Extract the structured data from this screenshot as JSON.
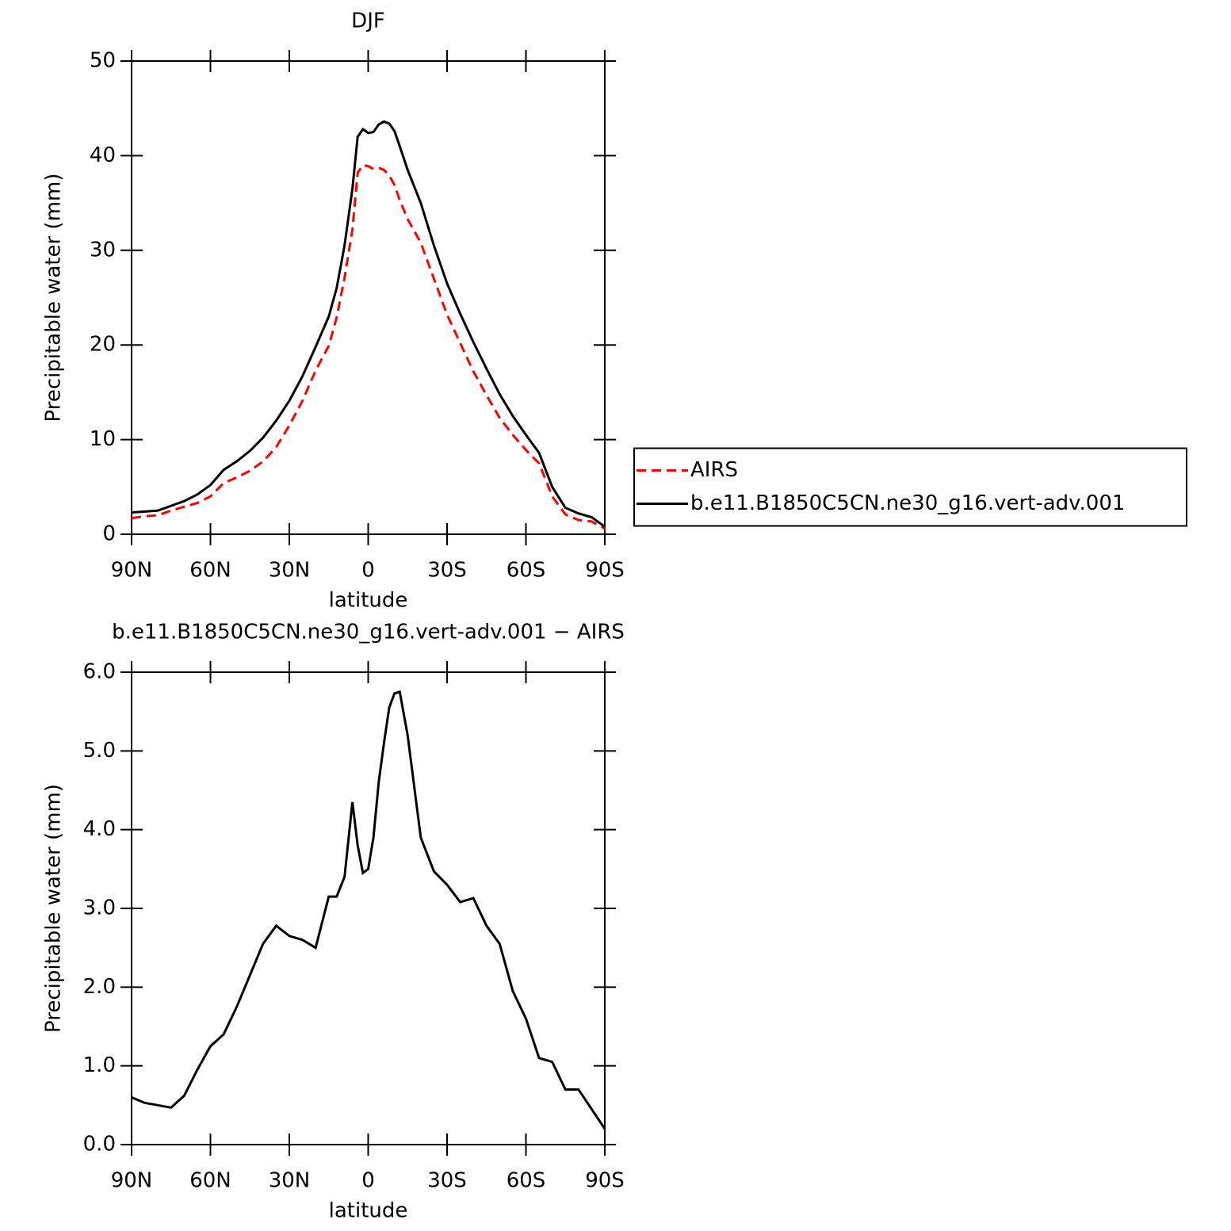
{
  "chart_data": [
    {
      "type": "line",
      "title": "DJF",
      "xlabel": "latitude",
      "ylabel": "Precipitable water (mm)",
      "x": [
        90,
        85,
        80,
        75,
        70,
        65,
        60,
        55,
        50,
        45,
        40,
        35,
        30,
        25,
        20,
        15,
        12,
        9,
        6,
        4,
        2,
        0,
        -2,
        -4,
        -6,
        -8,
        -10,
        -12,
        -15,
        -20,
        -25,
        -30,
        -35,
        -40,
        -45,
        -50,
        -55,
        -60,
        -65,
        -70,
        -75,
        -80,
        -85,
        -90
      ],
      "xlim": [
        90,
        -90
      ],
      "xticks": [
        {
          "value": 90,
          "label": "90N"
        },
        {
          "value": 60,
          "label": "60N"
        },
        {
          "value": 30,
          "label": "30N"
        },
        0,
        {
          "value": -30,
          "label": "30S"
        },
        {
          "value": -60,
          "label": "60S"
        },
        {
          "value": -90,
          "label": "90S"
        }
      ],
      "ylim": [
        0,
        50
      ],
      "yticks": [
        0,
        10,
        20,
        30,
        40,
        50
      ],
      "legend": "right",
      "series": [
        {
          "name": "AIRS",
          "color": "#ff0000",
          "linestyle": "dashed",
          "values": [
            1.7,
            1.9,
            2.0,
            2.5,
            2.9,
            3.3,
            4.0,
            5.4,
            6.0,
            6.7,
            7.7,
            9.2,
            11.5,
            14.1,
            17.3,
            19.9,
            22.9,
            27.1,
            32.2,
            38.2,
            39.0,
            38.9,
            38.6,
            38.7,
            38.5,
            37.9,
            36.9,
            35.3,
            33.3,
            30.8,
            27.0,
            23.2,
            20.2,
            17.2,
            14.7,
            12.3,
            10.5,
            8.9,
            7.5,
            4.0,
            2.1,
            1.5,
            1.35,
            0.6
          ]
        },
        {
          "name": "b.e11.B1850C5CN.ne30_g16.vert-adv.001",
          "color": "#000000",
          "linestyle": "solid",
          "values": [
            2.3,
            2.4,
            2.5,
            3.0,
            3.5,
            4.2,
            5.2,
            6.8,
            7.7,
            8.8,
            10.2,
            12.0,
            14.1,
            16.7,
            19.8,
            23.0,
            26.0,
            30.5,
            36.5,
            42.0,
            42.8,
            42.4,
            42.5,
            43.3,
            43.6,
            43.4,
            42.6,
            41.0,
            38.5,
            35.0,
            30.5,
            26.5,
            23.3,
            20.3,
            17.5,
            14.8,
            12.5,
            10.5,
            8.6,
            5.0,
            2.8,
            2.2,
            1.8,
            0.8
          ]
        }
      ]
    },
    {
      "type": "line",
      "title": "b.e11.B1850C5CN.ne30_g16.vert-adv.001 − AIRS",
      "xlabel": "latitude",
      "ylabel": "Precipitable water (mm)",
      "x": [
        90,
        85,
        80,
        75,
        70,
        65,
        60,
        55,
        50,
        45,
        40,
        35,
        30,
        25,
        20,
        15,
        12,
        9,
        6,
        4,
        2,
        0,
        -2,
        -4,
        -6,
        -8,
        -10,
        -12,
        -15,
        -20,
        -25,
        -30,
        -35,
        -40,
        -45,
        -50,
        -55,
        -60,
        -65,
        -70,
        -75,
        -80,
        -85,
        -90
      ],
      "xlim": [
        90,
        -90
      ],
      "xticks": [
        {
          "value": 90,
          "label": "90N"
        },
        {
          "value": 60,
          "label": "60N"
        },
        {
          "value": 30,
          "label": "30N"
        },
        0,
        {
          "value": -30,
          "label": "30S"
        },
        {
          "value": -60,
          "label": "60S"
        },
        {
          "value": -90,
          "label": "90S"
        }
      ],
      "ylim": [
        0,
        6
      ],
      "yticks": [
        {
          "value": 0,
          "label": "0.0"
        },
        {
          "value": 1,
          "label": "1.0"
        },
        {
          "value": 2,
          "label": "2.0"
        },
        {
          "value": 3,
          "label": "3.0"
        },
        {
          "value": 4,
          "label": "4.0"
        },
        {
          "value": 5,
          "label": "5.0"
        },
        {
          "value": 6,
          "label": "6.0"
        }
      ],
      "series": [
        {
          "color": "#000000",
          "linestyle": "solid",
          "values": [
            0.6,
            0.53,
            0.5,
            0.47,
            0.62,
            0.95,
            1.25,
            1.4,
            1.75,
            2.15,
            2.55,
            2.78,
            2.65,
            2.6,
            2.5,
            3.15,
            3.15,
            3.4,
            4.35,
            3.8,
            3.45,
            3.5,
            3.9,
            4.6,
            5.1,
            5.55,
            5.73,
            5.75,
            5.2,
            3.9,
            3.47,
            3.3,
            3.08,
            3.13,
            2.78,
            2.55,
            1.95,
            1.6,
            1.1,
            1.05,
            0.7,
            0.7,
            0.45,
            0.2
          ]
        }
      ]
    }
  ]
}
